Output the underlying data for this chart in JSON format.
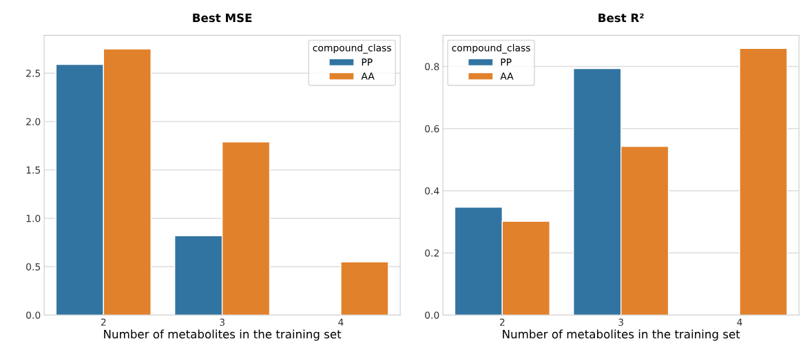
{
  "chart_data": [
    {
      "type": "bar",
      "title": "Best MSE",
      "xlabel": "Number of metabolites in the training set",
      "categories": [
        "2",
        "3",
        "4"
      ],
      "legend_title": "compound_class",
      "legend": "top right",
      "grid": "y",
      "ylim": [
        0,
        2.89
      ],
      "yticks": [
        {
          "value": 0,
          "label": "0.0"
        },
        0.5,
        {
          "value": 1,
          "label": "1.0"
        },
        1.5,
        {
          "value": 2,
          "label": "2.0"
        },
        2.5
      ],
      "series": [
        {
          "name": "PP",
          "color": "#3274a1",
          "values": [
            2.59,
            0.82,
            null
          ]
        },
        {
          "name": "AA",
          "color": "#e1812c",
          "values": [
            2.75,
            1.79,
            0.55
          ]
        }
      ]
    },
    {
      "type": "bar",
      "title": "Best R²",
      "xlabel": "Number of metabolites in the training set",
      "categories": [
        "2",
        "3",
        "4"
      ],
      "legend_title": "compound_class",
      "legend": "top left",
      "grid": "y",
      "ylim": [
        0,
        0.9
      ],
      "yticks": [
        {
          "value": 0,
          "label": "0.0"
        },
        0.2,
        0.4,
        0.6,
        0.8
      ],
      "series": [
        {
          "name": "PP",
          "color": "#3274a1",
          "values": [
            0.347,
            0.793,
            null
          ]
        },
        {
          "name": "AA",
          "color": "#e1812c",
          "values": [
            0.302,
            0.543,
            0.858
          ]
        }
      ]
    }
  ]
}
